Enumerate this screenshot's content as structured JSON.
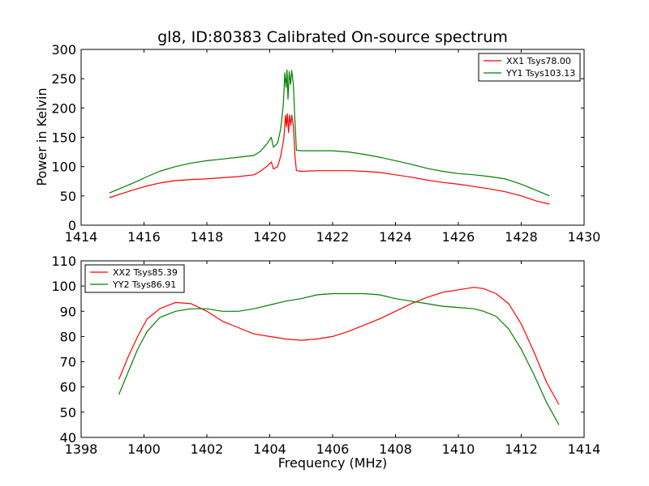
{
  "title": "gl8, ID:80383 Calibrated On-source spectrum",
  "chart_data": [
    {
      "type": "line",
      "title": "gl8, ID:80383 Calibrated On-source spectrum",
      "xlabel": "",
      "ylabel": "Power in Kelvin",
      "xlim": [
        1414,
        1430
      ],
      "ylim": [
        0,
        300
      ],
      "xticks": [
        1414,
        1416,
        1418,
        1420,
        1422,
        1424,
        1426,
        1428,
        1430
      ],
      "yticks": [
        0,
        50,
        100,
        150,
        200,
        250,
        300
      ],
      "legend_position": "top-right",
      "grid": false,
      "series": [
        {
          "name": "XX1 Tsys78.00",
          "color": "#ff0000",
          "x": [
            1414.9,
            1415.3,
            1415.7,
            1416.1,
            1416.5,
            1417.0,
            1417.5,
            1418.0,
            1418.5,
            1419.0,
            1419.5,
            1419.7,
            1419.9,
            1420.05,
            1420.12,
            1420.25,
            1420.35,
            1420.45,
            1420.5,
            1420.53,
            1420.56,
            1420.6,
            1420.63,
            1420.67,
            1420.7,
            1420.75,
            1420.8,
            1420.85,
            1421.0,
            1421.5,
            1422.0,
            1422.5,
            1423.0,
            1423.5,
            1424.0,
            1424.5,
            1425.0,
            1425.5,
            1426.0,
            1426.5,
            1427.0,
            1427.5,
            1428.0,
            1428.5,
            1428.9
          ],
          "y": [
            47,
            54,
            61,
            67,
            72,
            76,
            78,
            79,
            81,
            83,
            86,
            92,
            100,
            108,
            96,
            100,
            118,
            148,
            188,
            168,
            190,
            158,
            188,
            170,
            188,
            170,
            120,
            93,
            92,
            93,
            93,
            93,
            92,
            90,
            86,
            82,
            77,
            73,
            70,
            66,
            62,
            57,
            50,
            41,
            36
          ]
        },
        {
          "name": "YY1 Tsys103.13",
          "color": "#008000",
          "x": [
            1414.9,
            1415.3,
            1415.7,
            1416.1,
            1416.5,
            1417.0,
            1417.5,
            1418.0,
            1418.5,
            1419.0,
            1419.5,
            1419.7,
            1419.9,
            1420.05,
            1420.12,
            1420.25,
            1420.35,
            1420.43,
            1420.48,
            1420.52,
            1420.55,
            1420.58,
            1420.62,
            1420.66,
            1420.7,
            1420.75,
            1420.8,
            1420.85,
            1421.0,
            1421.5,
            1422.0,
            1422.5,
            1423.0,
            1423.5,
            1424.0,
            1424.5,
            1425.0,
            1425.5,
            1426.0,
            1426.5,
            1427.0,
            1427.5,
            1428.0,
            1428.5,
            1428.9
          ],
          "y": [
            55,
            64,
            73,
            83,
            92,
            100,
            106,
            110,
            113,
            116,
            119,
            126,
            138,
            150,
            133,
            140,
            165,
            205,
            260,
            235,
            265,
            215,
            262,
            240,
            264,
            240,
            180,
            128,
            127,
            127,
            127,
            125,
            121,
            116,
            110,
            104,
            97,
            92,
            88,
            86,
            83,
            79,
            70,
            59,
            50
          ]
        }
      ]
    },
    {
      "type": "line",
      "title": "",
      "xlabel": "Frequency (MHz)",
      "ylabel": "",
      "xlim": [
        1398,
        1414
      ],
      "ylim": [
        40,
        110
      ],
      "xticks": [
        1398,
        1400,
        1402,
        1404,
        1406,
        1408,
        1410,
        1412,
        1414
      ],
      "yticks": [
        40,
        50,
        60,
        70,
        80,
        90,
        100,
        110
      ],
      "legend_position": "top-left",
      "grid": false,
      "series": [
        {
          "name": "XX2 Tsys85.39",
          "color": "#ff0000",
          "x": [
            1399.2,
            1399.5,
            1399.8,
            1400.1,
            1400.5,
            1401.0,
            1401.5,
            1402.0,
            1402.5,
            1403.0,
            1403.5,
            1404.0,
            1404.5,
            1405.0,
            1405.5,
            1406.0,
            1406.5,
            1407.0,
            1407.5,
            1408.0,
            1408.5,
            1409.0,
            1409.5,
            1410.0,
            1410.5,
            1410.8,
            1411.2,
            1411.6,
            1412.0,
            1412.4,
            1412.8,
            1413.2
          ],
          "y": [
            63,
            72,
            80,
            87,
            91,
            93.5,
            93,
            90,
            86,
            83.5,
            81,
            80,
            79,
            78.5,
            79,
            80,
            82,
            84.5,
            87,
            90,
            93,
            95.5,
            97.5,
            98.5,
            99.5,
            99,
            97,
            93,
            85,
            74,
            62,
            53
          ]
        },
        {
          "name": "YY2 Tsys86.91",
          "color": "#008000",
          "x": [
            1399.2,
            1399.5,
            1399.8,
            1400.1,
            1400.5,
            1401.0,
            1401.5,
            1402.0,
            1402.5,
            1403.0,
            1403.5,
            1404.0,
            1404.5,
            1405.0,
            1405.5,
            1406.0,
            1406.5,
            1407.0,
            1407.5,
            1408.0,
            1408.5,
            1409.0,
            1409.5,
            1410.0,
            1410.5,
            1410.8,
            1411.2,
            1411.6,
            1412.0,
            1412.4,
            1412.8,
            1413.2
          ],
          "y": [
            57,
            66,
            75,
            82,
            87.5,
            90,
            91,
            91,
            90,
            90,
            91,
            92.5,
            94,
            95,
            96.5,
            97,
            97,
            97,
            96.5,
            95,
            94,
            93,
            92,
            91.5,
            91,
            90,
            88,
            83,
            75,
            65,
            54,
            45
          ]
        }
      ]
    }
  ]
}
